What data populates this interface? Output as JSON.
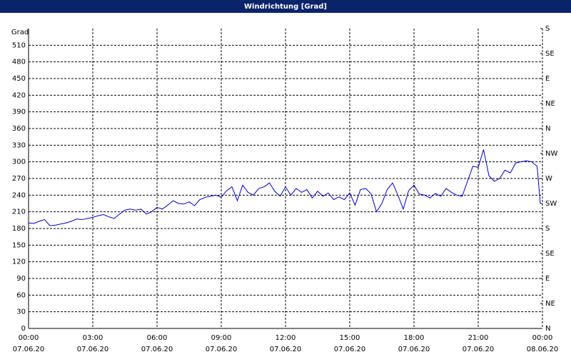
{
  "chart_data": {
    "type": "line",
    "title": "Windrichtung [Grad]",
    "ylabel": "Grad",
    "xlim": [
      0,
      24
    ],
    "xticks": [
      {
        "value": 0,
        "label": "00:00"
      },
      {
        "value": 3,
        "label": "03:00"
      },
      {
        "value": 6,
        "label": "06:00"
      },
      {
        "value": 9,
        "label": "09:00"
      },
      {
        "value": 12,
        "label": "12:00"
      },
      {
        "value": 15,
        "label": "15:00"
      },
      {
        "value": 18,
        "label": "18:00"
      },
      {
        "value": 21,
        "label": "21:00"
      },
      {
        "value": 24,
        "label": "00:00"
      }
    ],
    "xtick_dates": [
      "07.06.20",
      "07.06.20",
      "07.06.20",
      "07.06.20",
      "07.06.20",
      "07.06.20",
      "07.06.20",
      "07.06.20",
      "08.06.20"
    ],
    "ylim": [
      0,
      540
    ],
    "yticks": [
      0,
      30,
      60,
      90,
      120,
      150,
      180,
      210,
      240,
      270,
      300,
      330,
      360,
      390,
      420,
      450,
      480,
      510
    ],
    "y2lim": [
      0,
      540
    ],
    "y2ticks": [
      {
        "value": 0,
        "label": "N"
      },
      {
        "value": 45,
        "label": "NE"
      },
      {
        "value": 90,
        "label": "E"
      },
      {
        "value": 135,
        "label": "SE"
      },
      {
        "value": 180,
        "label": "S"
      },
      {
        "value": 225,
        "label": "SW"
      },
      {
        "value": 270,
        "label": "W"
      },
      {
        "value": 315,
        "label": "NW"
      },
      {
        "value": 360,
        "label": "N"
      },
      {
        "value": 405,
        "label": "NE"
      },
      {
        "value": 450,
        "label": "E"
      },
      {
        "value": 495,
        "label": "SE"
      },
      {
        "value": 540,
        "label": "S"
      }
    ],
    "grid": true,
    "x": [
      0,
      0.25,
      0.5,
      0.75,
      1,
      1.25,
      1.5,
      1.75,
      2,
      2.25,
      2.5,
      2.75,
      3,
      3.25,
      3.5,
      3.75,
      4,
      4.25,
      4.5,
      4.75,
      5,
      5.25,
      5.5,
      5.75,
      6,
      6.25,
      6.5,
      6.75,
      7,
      7.25,
      7.5,
      7.75,
      8,
      8.25,
      8.5,
      8.75,
      9,
      9.25,
      9.5,
      9.75,
      10,
      10.25,
      10.5,
      10.75,
      11,
      11.25,
      11.5,
      11.75,
      12,
      12.25,
      12.5,
      12.75,
      13,
      13.25,
      13.5,
      13.75,
      14,
      14.25,
      14.5,
      14.75,
      15,
      15.25,
      15.5,
      15.75,
      16,
      16.25,
      16.5,
      16.75,
      17,
      17.25,
      17.5,
      17.75,
      18,
      18.25,
      18.5,
      18.75,
      19,
      19.25,
      19.5,
      19.75,
      20,
      20.25,
      20.5,
      20.75,
      21,
      21.25,
      21.5,
      21.75,
      22,
      22.25,
      22.5,
      22.75,
      23,
      23.25,
      23.5,
      23.75,
      23.9
    ],
    "series": [
      {
        "name": "Windrichtung",
        "color": "#0000c8",
        "values": [
          190,
          189,
          193,
          196,
          185,
          186,
          188,
          190,
          193,
          197,
          196,
          198,
          200,
          203,
          205,
          201,
          198,
          206,
          213,
          215,
          213,
          215,
          206,
          210,
          218,
          215,
          222,
          230,
          225,
          224,
          228,
          221,
          232,
          236,
          238,
          240,
          236,
          248,
          255,
          230,
          258,
          245,
          240,
          252,
          255,
          262,
          247,
          238,
          255,
          240,
          252,
          245,
          250,
          235,
          247,
          238,
          244,
          232,
          237,
          232,
          244,
          222,
          250,
          252,
          242,
          210,
          225,
          250,
          262,
          240,
          215,
          248,
          258,
          242,
          240,
          235,
          243,
          238,
          252,
          245,
          240,
          238,
          265,
          292,
          290,
          322,
          275,
          265,
          270,
          285,
          280,
          298,
          300,
          302,
          300,
          292,
          225
        ]
      }
    ]
  }
}
